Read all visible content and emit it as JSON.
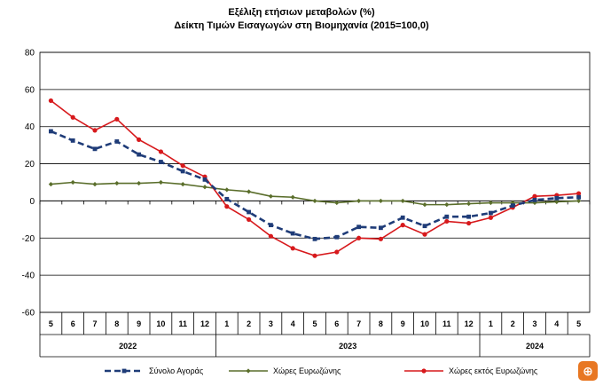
{
  "chart_data": {
    "type": "line",
    "title": "Εξέλιξη ετήσιων μεταβολών (%)",
    "subtitle": "Δείκτη Τιμών Εισαγωγών στη Βιομηχανία (2015=100,0)",
    "ylim": [
      -60,
      80
    ],
    "yticks": [
      -60,
      -40,
      -20,
      0,
      20,
      40,
      60,
      80
    ],
    "categories": [
      "5",
      "6",
      "7",
      "8",
      "9",
      "10",
      "11",
      "12",
      "1",
      "2",
      "3",
      "4",
      "5",
      "6",
      "7",
      "8",
      "9",
      "10",
      "11",
      "12",
      "1",
      "2",
      "3",
      "4",
      "5"
    ],
    "years": [
      {
        "label": "2022",
        "start": 0,
        "end": 7
      },
      {
        "label": "2023",
        "start": 8,
        "end": 19
      },
      {
        "label": "2024",
        "start": 20,
        "end": 24
      }
    ],
    "grid": true,
    "legend_position": "bottom",
    "series": [
      {
        "name": "Σύνολο Αγοράς",
        "color": "#1f3c78",
        "style": "dashed",
        "marker": "square",
        "values": [
          37.5,
          32.5,
          28,
          32,
          25,
          21,
          16,
          11.5,
          1,
          -6,
          -13,
          -17.5,
          -20.5,
          -19.5,
          -14,
          -14.5,
          -9,
          -13.5,
          -8.5,
          -8.5,
          -6.5,
          -2.5,
          0.5,
          1.5,
          2
        ]
      },
      {
        "name": "Χώρες Ευρωζώνης",
        "color": "#5a6e2b",
        "style": "solid",
        "marker": "diamond",
        "values": [
          9,
          10,
          9,
          9.5,
          9.5,
          10,
          9,
          7.5,
          6,
          5,
          2.5,
          2,
          0,
          -1,
          0,
          0,
          0,
          -2,
          -2,
          -1.5,
          -1,
          -1,
          -1,
          -0.5,
          0
        ]
      },
      {
        "name": "Χώρες εκτός Ευρωζώνης",
        "color": "#d7191c",
        "style": "solid",
        "marker": "circle",
        "values": [
          54,
          45,
          38,
          44,
          33,
          26.5,
          19,
          13,
          -3,
          -10,
          -19,
          -25.5,
          -29.5,
          -27.5,
          -20,
          -20.5,
          -13,
          -18,
          -11,
          -12,
          -9,
          -3.5,
          2.5,
          3,
          4
        ]
      }
    ]
  },
  "logo": {
    "name": "zoom-logo",
    "glyph": "⊕"
  }
}
